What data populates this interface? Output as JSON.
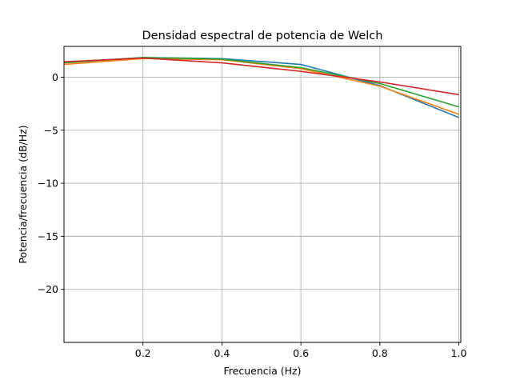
{
  "chart_data": {
    "type": "line",
    "title": "Densidad espectral de potencia de Welch",
    "xlabel": "Frecuencia (Hz)",
    "ylabel": "Potencia/frecuencia (dB/Hz)",
    "xlim": [
      0.0,
      1.005
    ],
    "ylim": [
      -25.0,
      2.9
    ],
    "xticks": [
      0.2,
      0.4,
      0.6,
      0.8,
      1.0
    ],
    "xtick_labels": [
      "0.2",
      "0.4",
      "0.6",
      "0.8",
      "1.0"
    ],
    "yticks": [
      0,
      -5,
      -10,
      -15,
      -20
    ],
    "ytick_labels": [
      "0",
      "−5",
      "−10",
      "−15",
      "−20"
    ],
    "grid": true,
    "x": [
      0.0,
      0.2,
      0.4,
      0.6,
      0.8,
      1.0
    ],
    "series": [
      {
        "color": "#1f77b4",
        "values": [
          1.4,
          1.85,
          1.75,
          1.2,
          -0.8,
          -3.8
        ]
      },
      {
        "color": "#ff7f0e",
        "values": [
          1.2,
          1.75,
          1.65,
          0.8,
          -0.85,
          -3.5
        ]
      },
      {
        "color": "#2ca02c",
        "values": [
          1.35,
          1.85,
          1.7,
          0.9,
          -0.6,
          -2.8
        ]
      },
      {
        "color": "#d62728",
        "values": [
          1.45,
          1.8,
          1.35,
          0.55,
          -0.45,
          -1.65
        ]
      }
    ]
  }
}
